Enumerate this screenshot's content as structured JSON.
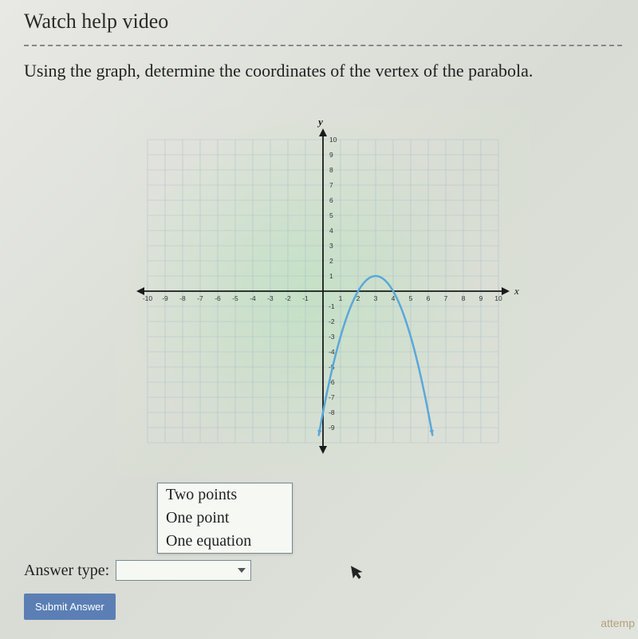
{
  "help_link": "Watch help video",
  "question": "Using the graph, determine the coordinates of the vertex of the parabola.",
  "graph": {
    "type": "parabola-on-grid",
    "x_axis_label": "x",
    "y_axis_label": "y",
    "xlim": [
      -10,
      10
    ],
    "ylim": [
      -10,
      10
    ],
    "xtick_step": 1,
    "ytick_step": 1,
    "xtick_labels": [
      "-10",
      "-9",
      "-8",
      "-7",
      "-6",
      "-5",
      "-4",
      "-3",
      "-2",
      "-1",
      "",
      "1",
      "2",
      "3",
      "4",
      "5",
      "6",
      "7",
      "8",
      "9",
      "10"
    ],
    "ytick_labels": [
      "10",
      "9",
      "8",
      "7",
      "6",
      "5",
      "4",
      "3",
      "2",
      "1",
      "",
      "-1",
      "-2",
      "-3",
      "-4",
      "-5",
      "-6",
      "-7",
      "-8",
      "-9"
    ],
    "grid_color": "#9fb8c8",
    "axis_color": "#1a1a1a",
    "background_gradient": [
      "#c8e8c8",
      "#e8ece0"
    ],
    "curve": {
      "color": "#5aa8d8",
      "width": 2.5,
      "vertex": [
        3,
        1
      ],
      "a": -1,
      "x_draw_range": [
        0,
        6
      ],
      "arrow_ends": true
    }
  },
  "dropdown": {
    "options": [
      "Two points",
      "One point",
      "One equation"
    ]
  },
  "answer_label": "Answer type:",
  "submit_label": "Submit Answer",
  "footer_hint": "attemp"
}
